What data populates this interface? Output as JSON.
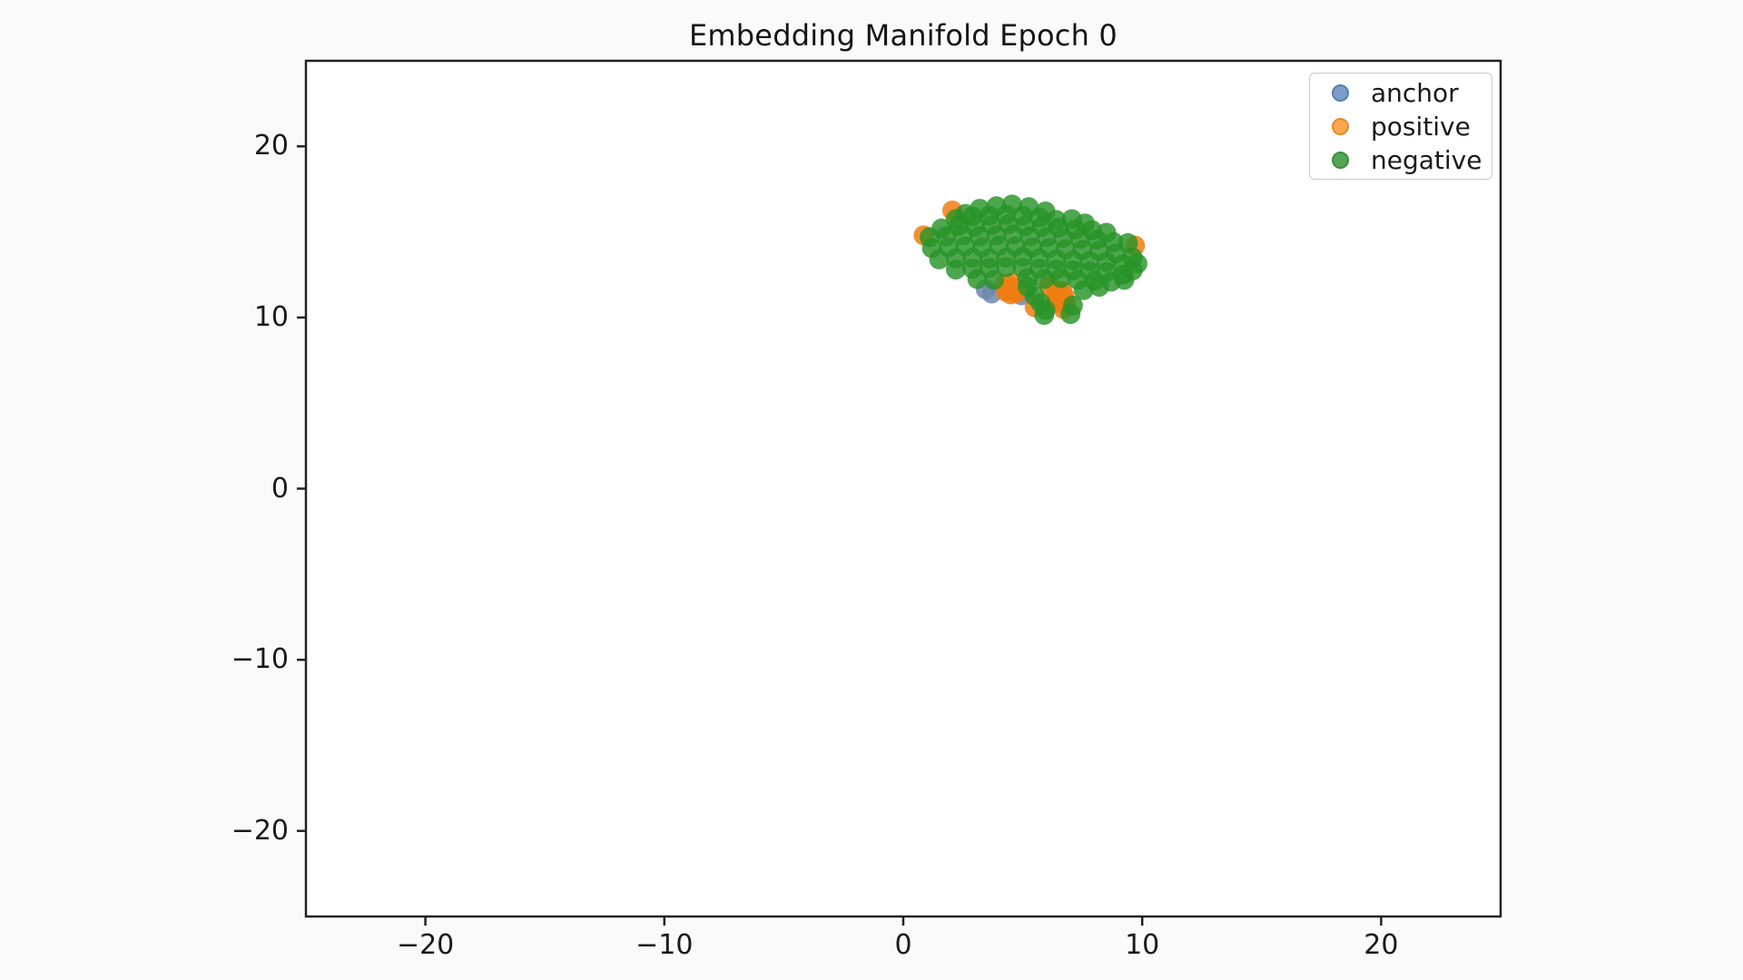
{
  "figure": {
    "background": "#fafafa",
    "plot_background": "#ffffff",
    "axis_color": "#222222",
    "text_color": "#1a1a1a",
    "legend_border_color": "#c9c9c9"
  },
  "chart_data": {
    "type": "scatter",
    "title": "Embedding Manifold Epoch 0",
    "xlabel": "",
    "ylabel": "",
    "xlim": [
      -25,
      25
    ],
    "ylim": [
      -25,
      25
    ],
    "grid": false,
    "xticks": {
      "values": [
        -20,
        -10,
        0,
        10,
        20
      ],
      "labels": [
        "−20",
        "−10",
        "0",
        "10",
        "20"
      ]
    },
    "yticks": {
      "values": [
        20,
        10,
        0,
        -10,
        -20
      ],
      "labels": [
        "20",
        "10",
        "0",
        "−10",
        "−20"
      ]
    },
    "legend": {
      "position": "upper right",
      "entries": [
        {
          "label": "anchor",
          "fill": "#7b9ec8",
          "edge": "#5580ad"
        },
        {
          "label": "positive",
          "fill": "#f9a84f",
          "edge": "#e8892a"
        },
        {
          "label": "negative",
          "fill": "#57a457",
          "edge": "#3a8f3c"
        }
      ]
    },
    "marker_radius_px": 11,
    "series": [
      {
        "name": "anchor",
        "color": "#6f87ab",
        "opacity": 0.85,
        "points": [
          [
            3.45,
            11.65
          ],
          [
            3.7,
            11.4
          ],
          [
            4.95,
            11.3
          ],
          [
            5.1,
            11.55
          ]
        ]
      },
      {
        "name": "positive",
        "color": "#f07c12",
        "opacity": 0.85,
        "points": [
          [
            4.25,
            12.0
          ],
          [
            4.55,
            12.05
          ],
          [
            4.4,
            11.7
          ],
          [
            4.7,
            11.75
          ],
          [
            4.5,
            11.35
          ],
          [
            4.75,
            11.45
          ],
          [
            4.3,
            11.5
          ],
          [
            6.35,
            11.6
          ],
          [
            6.65,
            11.55
          ],
          [
            6.5,
            11.2
          ],
          [
            6.75,
            11.25
          ],
          [
            6.55,
            10.85
          ],
          [
            6.8,
            10.9
          ],
          [
            6.35,
            11.0
          ],
          [
            6.7,
            10.5
          ],
          [
            5.5,
            10.6
          ],
          [
            0.85,
            14.8
          ],
          [
            2.05,
            16.25
          ],
          [
            9.7,
            14.2
          ],
          [
            6.1,
            11.85
          ]
        ]
      },
      {
        "name": "negative",
        "color": "#279427",
        "opacity": 0.82,
        "points": [
          [
            2.6,
            16.05
          ],
          [
            3.2,
            16.35
          ],
          [
            3.9,
            16.5
          ],
          [
            4.55,
            16.6
          ],
          [
            5.25,
            16.45
          ],
          [
            5.95,
            16.2
          ],
          [
            2.2,
            15.75
          ],
          [
            2.9,
            15.9
          ],
          [
            3.6,
            15.95
          ],
          [
            4.3,
            16.0
          ],
          [
            5.0,
            15.95
          ],
          [
            5.7,
            15.85
          ],
          [
            6.4,
            15.7
          ],
          [
            7.05,
            15.75
          ],
          [
            7.6,
            15.5
          ],
          [
            1.6,
            15.2
          ],
          [
            2.3,
            15.35
          ],
          [
            3.0,
            15.3
          ],
          [
            3.7,
            15.4
          ],
          [
            4.4,
            15.45
          ],
          [
            5.1,
            15.35
          ],
          [
            5.8,
            15.3
          ],
          [
            6.5,
            15.25
          ],
          [
            7.2,
            15.15
          ],
          [
            7.9,
            15.1
          ],
          [
            8.5,
            14.95
          ],
          [
            1.1,
            14.7
          ],
          [
            1.8,
            14.75
          ],
          [
            2.5,
            14.8
          ],
          [
            3.2,
            14.75
          ],
          [
            3.9,
            14.8
          ],
          [
            4.6,
            14.85
          ],
          [
            5.3,
            14.75
          ],
          [
            6.0,
            14.7
          ],
          [
            6.7,
            14.65
          ],
          [
            7.4,
            14.6
          ],
          [
            8.1,
            14.55
          ],
          [
            8.8,
            14.4
          ],
          [
            9.4,
            14.35
          ],
          [
            1.2,
            14.05
          ],
          [
            1.9,
            14.1
          ],
          [
            2.6,
            14.15
          ],
          [
            3.3,
            14.1
          ],
          [
            4.0,
            14.2
          ],
          [
            4.7,
            14.15
          ],
          [
            5.4,
            14.1
          ],
          [
            6.1,
            14.05
          ],
          [
            6.8,
            14.0
          ],
          [
            7.5,
            13.95
          ],
          [
            8.2,
            13.9
          ],
          [
            8.9,
            13.75
          ],
          [
            9.6,
            13.5
          ],
          [
            1.5,
            13.4
          ],
          [
            2.2,
            13.45
          ],
          [
            2.9,
            13.5
          ],
          [
            3.6,
            13.45
          ],
          [
            4.3,
            13.5
          ],
          [
            5.0,
            13.55
          ],
          [
            5.7,
            13.45
          ],
          [
            6.4,
            13.4
          ],
          [
            7.1,
            13.35
          ],
          [
            7.8,
            13.3
          ],
          [
            8.5,
            13.25
          ],
          [
            9.2,
            13.1
          ],
          [
            9.8,
            13.15
          ],
          [
            2.2,
            12.8
          ],
          [
            2.9,
            12.85
          ],
          [
            3.6,
            12.9
          ],
          [
            4.3,
            12.95
          ],
          [
            5.0,
            12.9
          ],
          [
            5.7,
            12.85
          ],
          [
            6.4,
            12.8
          ],
          [
            7.1,
            12.75
          ],
          [
            7.8,
            12.7
          ],
          [
            8.5,
            12.65
          ],
          [
            9.2,
            12.5
          ],
          [
            9.6,
            12.75
          ],
          [
            3.1,
            12.25
          ],
          [
            3.8,
            12.2
          ],
          [
            5.2,
            12.3
          ],
          [
            5.9,
            12.25
          ],
          [
            6.6,
            12.3
          ],
          [
            7.3,
            12.2
          ],
          [
            8.0,
            12.15
          ],
          [
            8.7,
            12.1
          ],
          [
            9.25,
            12.2
          ],
          [
            5.2,
            11.8
          ],
          [
            7.55,
            11.6
          ],
          [
            8.2,
            11.8
          ],
          [
            5.5,
            11.25
          ],
          [
            5.75,
            10.85
          ],
          [
            5.95,
            10.45
          ],
          [
            5.9,
            10.15
          ],
          [
            7.1,
            10.7
          ],
          [
            7.0,
            10.2
          ]
        ]
      }
    ]
  }
}
